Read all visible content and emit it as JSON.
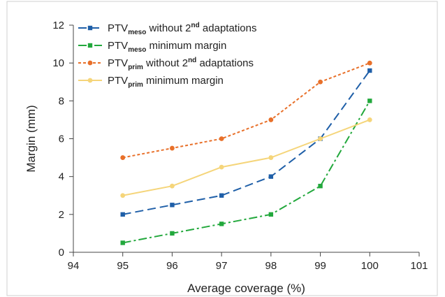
{
  "chart_data": {
    "type": "line",
    "xlabel": "Average coverage (%)",
    "ylabel": "Margin (mm)",
    "xlim": [
      94,
      101
    ],
    "ylim": [
      0,
      12
    ],
    "xticks": [
      "94",
      "95",
      "96",
      "97",
      "98",
      "99",
      "100",
      "101"
    ],
    "yticks": [
      "0",
      "2",
      "4",
      "6",
      "8",
      "10",
      "12"
    ],
    "grid": false,
    "legend_position": "top-left",
    "series": [
      {
        "name": "PTVmeso without 2nd adaptations",
        "legend": {
          "main": "PTV",
          "sub": "meso",
          "rest1": " without 2",
          "sup": "nd",
          "rest2": " adaptations"
        },
        "color": "#1f5fa8",
        "dash": "12,6",
        "marker": "square",
        "x": [
          95,
          96,
          97,
          98,
          99,
          100
        ],
        "y": [
          2,
          2.5,
          3,
          4,
          6,
          9.6
        ]
      },
      {
        "name": "PTVmeso minimum margin",
        "legend": {
          "main": "PTV",
          "sub": "meso",
          "rest1": " minimum margin",
          "sup": "",
          "rest2": ""
        },
        "color": "#22a83c",
        "dash": "12,4,3,4",
        "marker": "square",
        "x": [
          95,
          96,
          97,
          98,
          99,
          100
        ],
        "y": [
          0.5,
          1,
          1.5,
          2,
          3.5,
          8
        ]
      },
      {
        "name": "PTVprim without 2nd adaptations",
        "legend": {
          "main": "PTV",
          "sub": "prim",
          "rest1": " without 2",
          "sup": "nd",
          "rest2": " adaptations"
        },
        "color": "#e8702a",
        "dash": "4,3",
        "marker": "circle",
        "x": [
          95,
          96,
          97,
          98,
          99,
          100
        ],
        "y": [
          5,
          5.5,
          6,
          7,
          9,
          10
        ]
      },
      {
        "name": "PTVprim minimum margin",
        "legend": {
          "main": "PTV",
          "sub": "prim",
          "rest1": " minimum margin",
          "sup": "",
          "rest2": ""
        },
        "color": "#f5d57a",
        "dash": "",
        "marker": "circle",
        "x": [
          95,
          96,
          97,
          98,
          99,
          100
        ],
        "y": [
          3,
          3.5,
          4.5,
          5,
          6,
          7
        ]
      }
    ]
  }
}
